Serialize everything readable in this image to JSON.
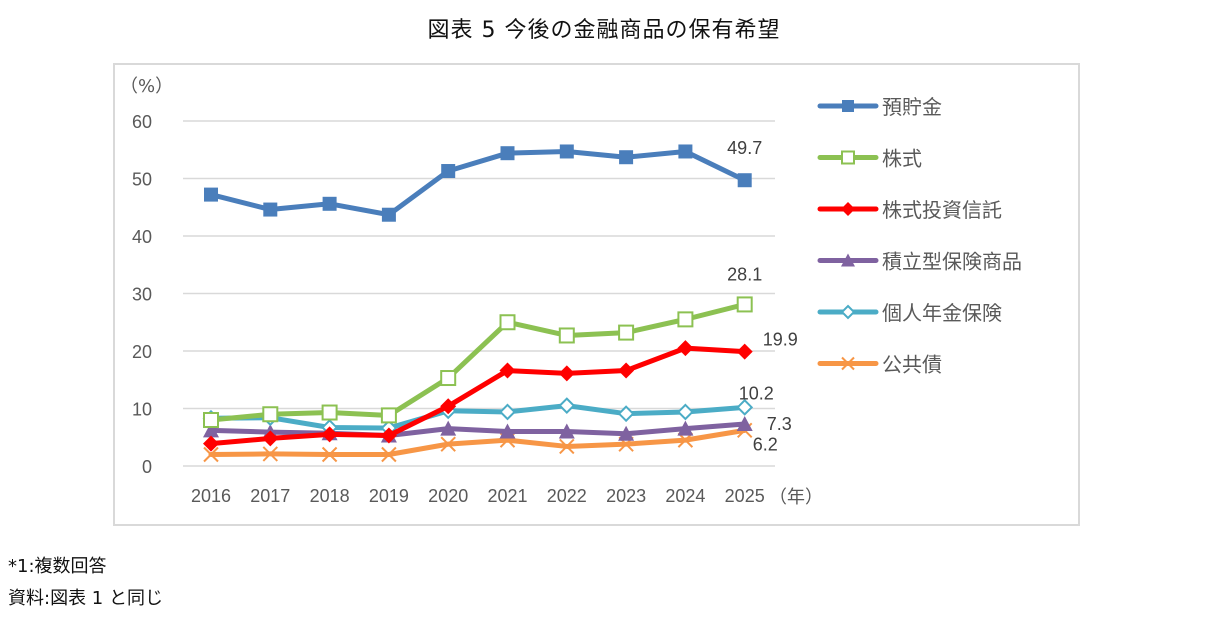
{
  "title": "図表 5  今後の金融商品の保有希望",
  "notes": [
    "*1:複数回答",
    "資料:図表 1 と同じ"
  ],
  "chart_data": {
    "type": "line",
    "title": "図表 5  今後の金融商品の保有希望",
    "xlabel": "（年）",
    "ylabel": "（%）",
    "x": [
      "2016",
      "2017",
      "2018",
      "2019",
      "2020",
      "2021",
      "2022",
      "2023",
      "2024",
      "2025"
    ],
    "ylim": [
      0,
      60
    ],
    "yticks": [
      0,
      10,
      20,
      30,
      40,
      50,
      60
    ],
    "grid": true,
    "legend_position": "right",
    "series": [
      {
        "name": "預貯金",
        "color": "#4a7ebb",
        "marker": "square-filled",
        "values": [
          47.2,
          44.6,
          45.6,
          43.7,
          51.3,
          54.4,
          54.7,
          53.7,
          54.7,
          49.7
        ],
        "end_label": "49.7"
      },
      {
        "name": "株式",
        "color": "#8cc152",
        "marker": "square-open",
        "values": [
          8.0,
          9.0,
          9.3,
          8.8,
          15.3,
          25.0,
          22.7,
          23.2,
          25.5,
          28.1
        ],
        "end_label": "28.1"
      },
      {
        "name": "株式投資信託",
        "color": "#ff0000",
        "marker": "diamond-filled",
        "values": [
          3.9,
          4.8,
          5.5,
          5.3,
          10.4,
          16.6,
          16.1,
          16.6,
          20.5,
          19.9
        ],
        "end_label": "19.9"
      },
      {
        "name": "積立型保険商品",
        "color": "#7f62a0",
        "marker": "triangle-filled",
        "values": [
          6.2,
          5.9,
          5.7,
          5.3,
          6.5,
          6.0,
          6.0,
          5.6,
          6.5,
          7.3
        ],
        "end_label": "7.3"
      },
      {
        "name": "個人年金保険",
        "color": "#4bacc6",
        "marker": "diamond-open",
        "values": [
          8.3,
          8.4,
          6.7,
          6.6,
          9.6,
          9.4,
          10.5,
          9.1,
          9.4,
          10.2
        ],
        "end_label": "10.2"
      },
      {
        "name": "公共債",
        "color": "#f79646",
        "marker": "x",
        "values": [
          2.0,
          2.1,
          2.0,
          2.0,
          3.8,
          4.5,
          3.4,
          3.8,
          4.5,
          6.2
        ],
        "end_label": "6.2"
      }
    ]
  }
}
